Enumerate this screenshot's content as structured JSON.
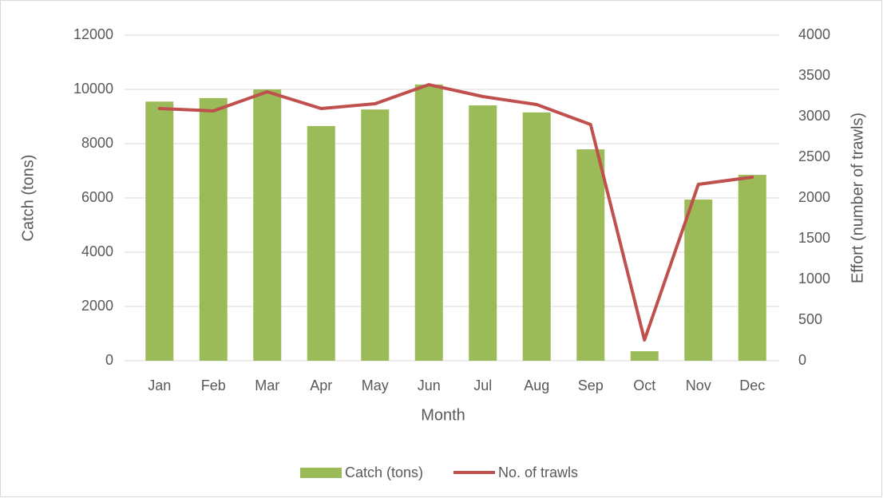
{
  "chart_data": {
    "type": "bar-line",
    "categories": [
      "Jan",
      "Feb",
      "Mar",
      "Apr",
      "May",
      "Jun",
      "Jul",
      "Aug",
      "Sep",
      "Oct",
      "Nov",
      "Dec"
    ],
    "series": [
      {
        "name": "Catch (tons)",
        "type": "bar",
        "color": "#9bbb59",
        "axis": "y",
        "values": [
          9550,
          9680,
          10000,
          8650,
          9260,
          10180,
          9410,
          9150,
          7790,
          350,
          5940,
          6850
        ]
      },
      {
        "name": "No. of trawls",
        "type": "line",
        "color": "#c0504d",
        "axis": "y2",
        "values": [
          3098,
          3069,
          3304,
          3098,
          3157,
          3392,
          3245,
          3147,
          2902,
          255,
          2167,
          2255
        ]
      }
    ],
    "xlabel": "Month",
    "ylabel": "Catch (tons)",
    "y2label": "Effort (number of trawls)",
    "ylim": [
      0,
      12000
    ],
    "yticks": [
      0,
      2000,
      4000,
      6000,
      8000,
      10000,
      12000
    ],
    "y2lim": [
      0,
      4000
    ],
    "y2ticks": [
      0,
      500,
      1000,
      1500,
      2000,
      2500,
      3000,
      3500,
      4000
    ],
    "grid": true,
    "legend": "bottom"
  }
}
